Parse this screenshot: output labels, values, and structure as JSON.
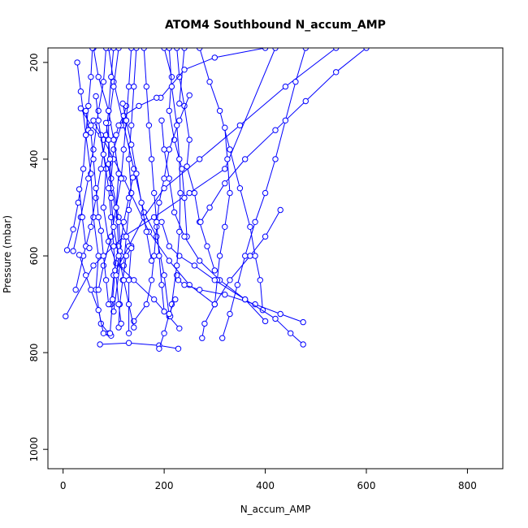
{
  "chart_data": {
    "type": "line",
    "title": "ATOM4 Southbound N_accum_AMP",
    "xlabel": "N_accum_AMP",
    "ylabel": "Pressure (mbar)",
    "xlim": [
      -30,
      870
    ],
    "ylim": [
      1040,
      170
    ],
    "y_reversed": true,
    "xticks": [
      0,
      200,
      400,
      600,
      800
    ],
    "yticks": [
      200,
      400,
      600,
      800,
      1000
    ],
    "grid": false,
    "legend": "none",
    "color": "#0000ff",
    "marker": "open-circle",
    "series": [
      {
        "points": [
          [
            28,
            200
          ],
          [
            35,
            260
          ],
          [
            45,
            350
          ],
          [
            55,
            430
          ],
          [
            60,
            520
          ],
          [
            70,
            600
          ],
          [
            65,
            670
          ],
          [
            75,
            740
          ],
          [
            90,
            760
          ]
        ]
      },
      {
        "points": [
          [
            90,
            170
          ],
          [
            100,
            240
          ],
          [
            120,
            330
          ],
          [
            140,
            420
          ],
          [
            160,
            510
          ],
          [
            185,
            560
          ],
          [
            200,
            640
          ],
          [
            210,
            725
          ]
        ]
      },
      {
        "points": [
          [
            5,
            725
          ],
          [
            60,
            620
          ],
          [
            120,
            560
          ],
          [
            180,
            520
          ],
          [
            250,
            470
          ],
          [
            320,
            420
          ],
          [
            420,
            170
          ]
        ]
      },
      {
        "points": [
          [
            125,
            290
          ],
          [
            115,
            330
          ],
          [
            100,
            380
          ],
          [
            95,
            440
          ],
          [
            110,
            520
          ],
          [
            135,
            580
          ],
          [
            130,
            650
          ],
          [
            130,
            760
          ]
        ]
      },
      {
        "points": [
          [
            35,
            295
          ],
          [
            55,
            330
          ],
          [
            80,
            360
          ],
          [
            100,
            400
          ],
          [
            120,
            440
          ],
          [
            170,
            550
          ],
          [
            210,
            610
          ],
          [
            250,
            660
          ],
          [
            300,
            700
          ]
        ]
      },
      {
        "points": [
          [
            60,
            320
          ],
          [
            75,
            350
          ],
          [
            85,
            420
          ],
          [
            80,
            500
          ],
          [
            90,
            570
          ],
          [
            105,
            615
          ],
          [
            140,
            650
          ],
          [
            180,
            690
          ],
          [
            230,
            750
          ]
        ]
      },
      {
        "points": [
          [
            60,
            170
          ],
          [
            70,
            230
          ],
          [
            90,
            300
          ],
          [
            100,
            360
          ],
          [
            110,
            430
          ],
          [
            105,
            500
          ],
          [
            110,
            580
          ],
          [
            100,
            640
          ],
          [
            95,
            700
          ]
        ]
      },
      {
        "points": [
          [
            110,
            170
          ],
          [
            100,
            250
          ],
          [
            90,
            325
          ],
          [
            90,
            410
          ],
          [
            95,
            460
          ],
          [
            110,
            530
          ],
          [
            115,
            600
          ],
          [
            100,
            715
          ]
        ]
      },
      {
        "points": [
          [
            225,
            170
          ],
          [
            230,
            230
          ],
          [
            240,
            290
          ],
          [
            250,
            360
          ],
          [
            245,
            415
          ],
          [
            260,
            470
          ],
          [
            270,
            530
          ],
          [
            285,
            580
          ],
          [
            300,
            630
          ]
        ]
      },
      {
        "points": [
          [
            240,
            170
          ],
          [
            230,
            285
          ]
        ]
      },
      {
        "points": [
          [
            200,
            170
          ],
          [
            215,
            230
          ],
          [
            210,
            300
          ],
          [
            220,
            360
          ],
          [
            235,
            420
          ],
          [
            240,
            480
          ],
          [
            245,
            560
          ]
        ]
      },
      {
        "points": [
          [
            250,
            268
          ],
          [
            230,
            320
          ],
          [
            210,
            380
          ],
          [
            200,
            440
          ],
          [
            190,
            490
          ],
          [
            185,
            540
          ],
          [
            180,
            600
          ],
          [
            175,
            650
          ],
          [
            165,
            700
          ],
          [
            140,
            735
          ]
        ]
      },
      {
        "points": [
          [
            195,
            320
          ],
          [
            200,
            380
          ],
          [
            210,
            440
          ],
          [
            220,
            510
          ],
          [
            240,
            560
          ],
          [
            270,
            610
          ],
          [
            310,
            650
          ],
          [
            360,
            690
          ],
          [
            400,
            735
          ]
        ]
      },
      {
        "points": [
          [
            270,
            170
          ],
          [
            290,
            240
          ],
          [
            310,
            300
          ],
          [
            330,
            380
          ],
          [
            350,
            460
          ],
          [
            370,
            540
          ],
          [
            380,
            600
          ],
          [
            390,
            650
          ],
          [
            395,
            712
          ]
        ]
      },
      {
        "points": [
          [
            320,
            335
          ],
          [
            325,
            400
          ],
          [
            330,
            470
          ],
          [
            320,
            540
          ],
          [
            310,
            600
          ],
          [
            305,
            650
          ],
          [
            300,
            700
          ]
        ]
      },
      {
        "points": [
          [
            430,
            505
          ],
          [
            400,
            560
          ],
          [
            370,
            600
          ],
          [
            330,
            650
          ],
          [
            300,
            700
          ],
          [
            280,
            740
          ],
          [
            275,
            770
          ]
        ]
      },
      {
        "points": [
          [
            600,
            170
          ],
          [
            540,
            220
          ],
          [
            480,
            280
          ],
          [
            420,
            340
          ],
          [
            360,
            400
          ],
          [
            320,
            450
          ],
          [
            290,
            500
          ],
          [
            272,
            530
          ]
        ]
      },
      {
        "points": [
          [
            540,
            170
          ],
          [
            440,
            250
          ],
          [
            350,
            330
          ],
          [
            270,
            400
          ],
          [
            200,
            460
          ],
          [
            160,
            520
          ],
          [
            130,
            580
          ],
          [
            100,
            640
          ]
        ]
      },
      {
        "points": [
          [
            400,
            170
          ],
          [
            300,
            190
          ],
          [
            240,
            215
          ],
          [
            193,
            273
          ]
        ]
      },
      {
        "points": [
          [
            185,
            273
          ],
          [
            150,
            290
          ],
          [
            120,
            310
          ],
          [
            110,
            330
          ],
          [
            105,
            350
          ]
        ]
      },
      {
        "points": [
          [
            475,
            737
          ],
          [
            430,
            720
          ],
          [
            380,
            700
          ],
          [
            320,
            680
          ],
          [
            270,
            670
          ],
          [
            240,
            660
          ],
          [
            228,
            650
          ],
          [
            225,
            640
          ]
        ]
      },
      {
        "points": [
          [
            475,
            783
          ],
          [
            450,
            760
          ],
          [
            420,
            730
          ],
          [
            360,
            690
          ],
          [
            300,
            650
          ],
          [
            260,
            620
          ],
          [
            230,
            600
          ],
          [
            210,
            580
          ],
          [
            195,
            530
          ]
        ]
      },
      {
        "points": [
          [
            210,
            170
          ],
          [
            215,
            250
          ],
          [
            225,
            330
          ],
          [
            230,
            400
          ],
          [
            232,
            470
          ],
          [
            230,
            550
          ],
          [
            225,
            620
          ],
          [
            215,
            700
          ],
          [
            212,
            725
          ]
        ]
      },
      {
        "points": [
          [
            20,
            590
          ],
          [
            35,
            520
          ],
          [
            50,
            440
          ],
          [
            60,
            380
          ],
          [
            70,
            300
          ],
          [
            80,
            240
          ],
          [
            85,
            170
          ]
        ]
      },
      {
        "points": [
          [
            8,
            588
          ],
          [
            20,
            545
          ],
          [
            30,
            490
          ],
          [
            40,
            420
          ],
          [
            45,
            350
          ],
          [
            50,
            290
          ],
          [
            55,
            230
          ],
          [
            58,
            170
          ]
        ]
      },
      {
        "points": [
          [
            25,
            670
          ],
          [
            40,
            600
          ],
          [
            55,
            540
          ],
          [
            65,
            480
          ],
          [
            75,
            420
          ],
          [
            85,
            350
          ],
          [
            90,
            300
          ],
          [
            95,
            230
          ],
          [
            100,
            170
          ]
        ]
      },
      {
        "points": [
          [
            32,
            598
          ],
          [
            45,
            640
          ],
          [
            55,
            670
          ],
          [
            70,
            712
          ],
          [
            80,
            760
          ],
          [
            95,
            765
          ]
        ]
      },
      {
        "points": [
          [
            70,
            670
          ],
          [
            80,
            620
          ],
          [
            95,
            560
          ],
          [
            105,
            500
          ],
          [
            115,
            440
          ],
          [
            120,
            380
          ],
          [
            125,
            320
          ],
          [
            130,
            250
          ],
          [
            135,
            170
          ]
        ]
      },
      {
        "points": [
          [
            65,
            270
          ],
          [
            70,
            320
          ],
          [
            80,
            390
          ],
          [
            90,
            460
          ],
          [
            95,
            520
          ],
          [
            100,
            580
          ],
          [
            103,
            630
          ],
          [
            98,
            690
          ],
          [
            93,
            760
          ]
        ]
      },
      {
        "points": [
          [
            73,
            783
          ],
          [
            130,
            780
          ],
          [
            190,
            785
          ],
          [
            228,
            792
          ]
        ]
      },
      {
        "points": [
          [
            190,
            792
          ],
          [
            200,
            760
          ],
          [
            210,
            720
          ],
          [
            222,
            690
          ]
        ]
      },
      {
        "points": [
          [
            145,
            170
          ],
          [
            140,
            250
          ],
          [
            135,
            330
          ],
          [
            130,
            400
          ],
          [
            135,
            470
          ],
          [
            130,
            505
          ],
          [
            125,
            560
          ],
          [
            120,
            620
          ]
        ]
      },
      {
        "points": [
          [
            32,
            462
          ],
          [
            38,
            520
          ],
          [
            45,
            580
          ],
          [
            52,
            584
          ]
        ]
      },
      {
        "points": [
          [
            175,
            610
          ],
          [
            165,
            550
          ],
          [
            155,
            490
          ],
          [
            145,
            430
          ],
          [
            135,
            370
          ],
          [
            125,
            320
          ],
          [
            118,
            285
          ]
        ]
      },
      {
        "points": [
          [
            110,
            748
          ],
          [
            112,
            700
          ],
          [
            118,
            650
          ],
          [
            125,
            600
          ],
          [
            135,
            584
          ]
        ]
      },
      {
        "points": [
          [
            138,
            438
          ],
          [
            130,
            480
          ],
          [
            120,
            530
          ],
          [
            112,
            590
          ],
          [
            105,
            640
          ],
          [
            110,
            700
          ],
          [
            115,
            740
          ]
        ]
      },
      {
        "points": [
          [
            160,
            170
          ],
          [
            165,
            250
          ],
          [
            170,
            330
          ],
          [
            175,
            400
          ],
          [
            180,
            470
          ],
          [
            185,
            530
          ],
          [
            190,
            600
          ],
          [
            195,
            660
          ],
          [
            200,
            715
          ]
        ]
      },
      {
        "points": [
          [
            315,
            770
          ],
          [
            330,
            720
          ],
          [
            345,
            660
          ],
          [
            360,
            600
          ],
          [
            380,
            530
          ],
          [
            400,
            470
          ],
          [
            420,
            400
          ],
          [
            440,
            320
          ],
          [
            460,
            240
          ],
          [
            480,
            170
          ]
        ]
      },
      {
        "points": [
          [
            45,
            300
          ],
          [
            50,
            340
          ],
          [
            55,
            345
          ],
          [
            60,
            400
          ],
          [
            65,
            460
          ],
          [
            70,
            520
          ],
          [
            75,
            548
          ],
          [
            80,
            600
          ],
          [
            85,
            650
          ],
          [
            90,
            700
          ]
        ]
      },
      {
        "points": [
          [
            85,
            325
          ],
          [
            90,
            360
          ],
          [
            93,
            400
          ],
          [
            95,
            480
          ],
          [
            100,
            540
          ],
          [
            110,
            600
          ],
          [
            120,
            650
          ],
          [
            130,
            700
          ],
          [
            140,
            748
          ]
        ]
      }
    ]
  }
}
